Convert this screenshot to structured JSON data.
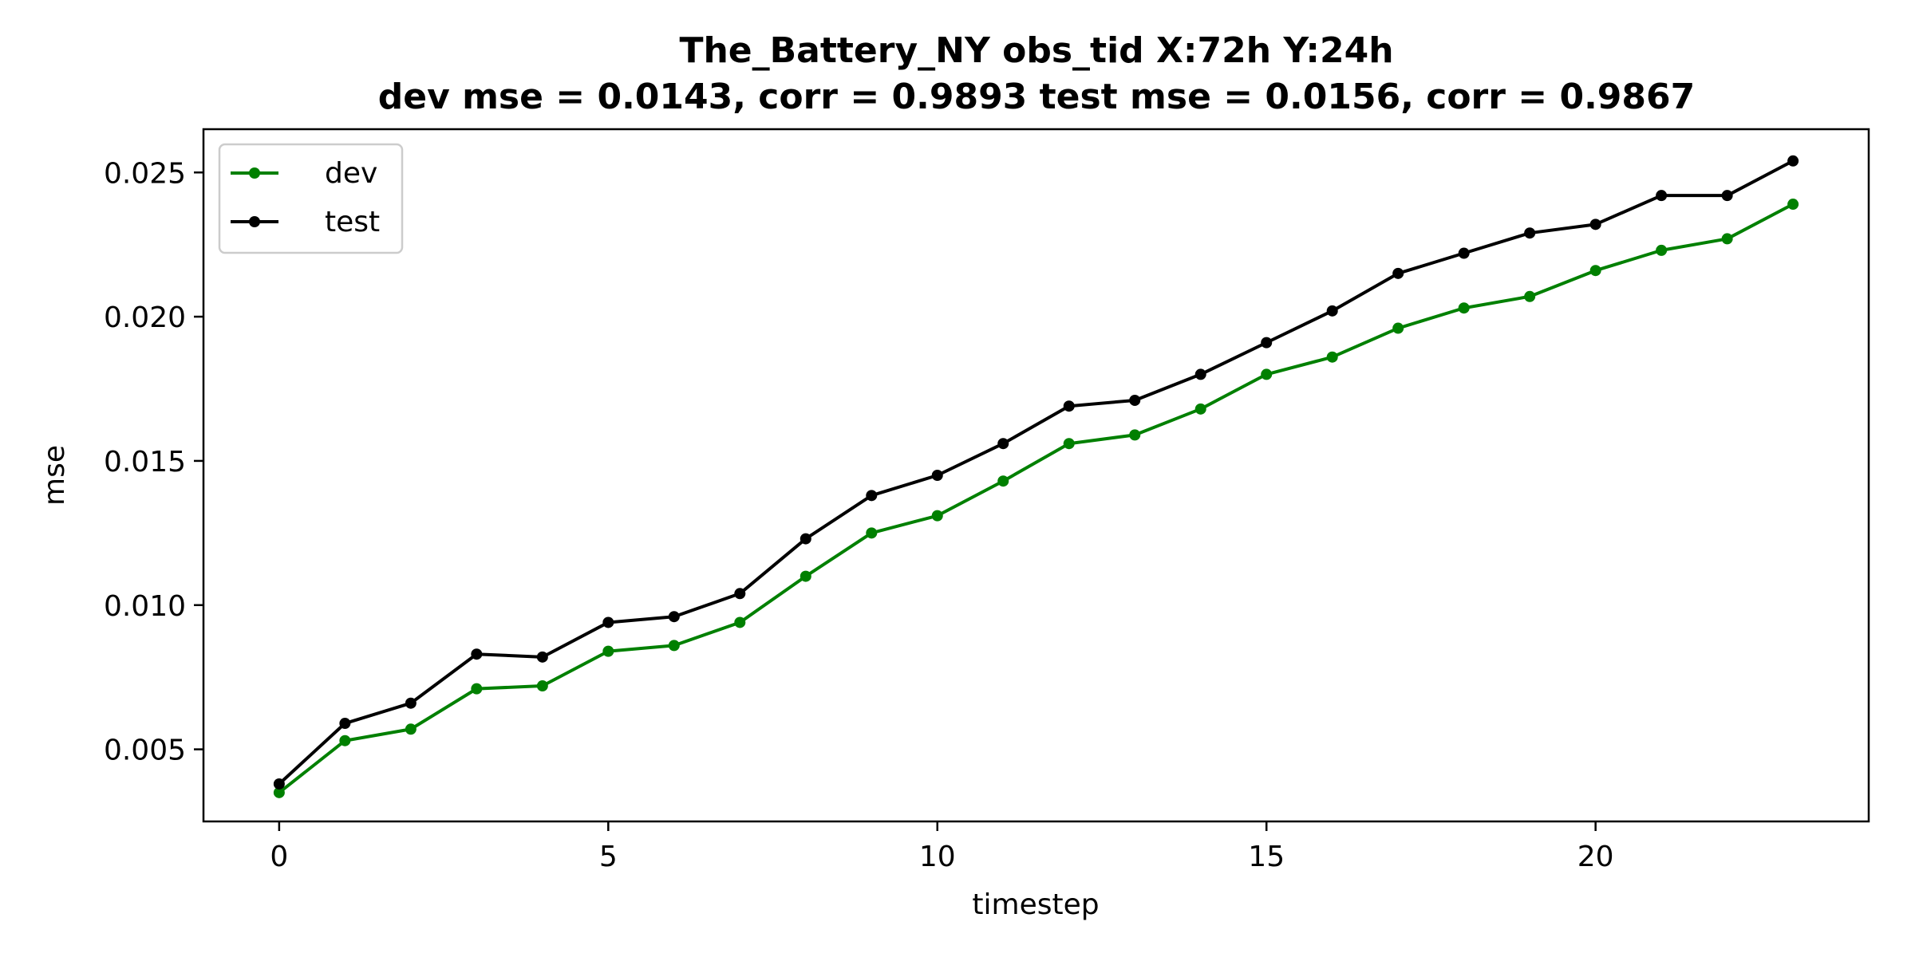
{
  "chart_data": {
    "type": "line",
    "title": "The_Battery_NY   obs_tid   X:72h   Y:24h",
    "subtitle": "dev mse = 0.0143, corr = 0.9893   test mse = 0.0156, corr = 0.9867",
    "xlabel": "timestep",
    "ylabel": "mse",
    "xlim": [
      -1.15,
      24.15
    ],
    "ylim": [
      0.0025,
      0.0265
    ],
    "xticks": [
      0,
      5,
      10,
      15,
      20
    ],
    "xtick_labels": [
      "0",
      "5",
      "10",
      "15",
      "20"
    ],
    "yticks": [
      0.005,
      0.01,
      0.015,
      0.02,
      0.025
    ],
    "ytick_labels": [
      "0.005",
      "0.010",
      "0.015",
      "0.020",
      "0.025"
    ],
    "grid": false,
    "legend_position": "upper-left",
    "x": [
      0,
      1,
      2,
      3,
      4,
      5,
      6,
      7,
      8,
      9,
      10,
      11,
      12,
      13,
      14,
      15,
      16,
      17,
      18,
      19,
      20,
      21,
      22,
      23
    ],
    "series": [
      {
        "name": "dev",
        "color": "#008000",
        "values": [
          0.0035,
          0.0053,
          0.0057,
          0.0071,
          0.0072,
          0.0084,
          0.0086,
          0.0094,
          0.011,
          0.0125,
          0.0131,
          0.0143,
          0.0156,
          0.0159,
          0.0168,
          0.018,
          0.0186,
          0.0196,
          0.0203,
          0.0207,
          0.0216,
          0.0223,
          0.0227,
          0.0239
        ]
      },
      {
        "name": "test",
        "color": "#000000",
        "values": [
          0.0038,
          0.0059,
          0.0066,
          0.0083,
          0.0082,
          0.0094,
          0.0096,
          0.0104,
          0.0123,
          0.0138,
          0.0145,
          0.0156,
          0.0169,
          0.0171,
          0.018,
          0.0191,
          0.0202,
          0.0215,
          0.0222,
          0.0229,
          0.0232,
          0.0242,
          0.0242,
          0.0254
        ]
      }
    ]
  }
}
